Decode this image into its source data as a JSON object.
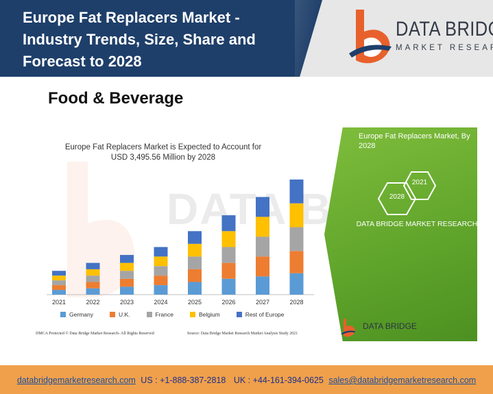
{
  "header": {
    "title": "Europe Fat Replacers Market - Industry Trends, Size, Share and Forecast to 2028",
    "logo_name": "DATA BRIDGE",
    "logo_sub": "MARKET RESEARCH"
  },
  "category": "Food & Beverage",
  "infographic": {
    "chart_title_line1": "Europe Fat Replacers Market is Expected to Account for",
    "chart_title_line2": "USD 3,495.56 Million by 2028",
    "watermark": "DATA BRIDGE",
    "footnote_left": "DMCA Protected © Data Bridge Market Research- All Rights Reserved",
    "footnote_right": "Source: Data Bridge Market Research Market Analysis Study 2021",
    "green_title": "Europe Fat Replacers Market, By 2028",
    "hex_2021": "2021",
    "hex_2028": "2028",
    "green_company": "DATA BRIDGE MARKET RESEARCH",
    "green_logo": "DATA BRIDGE"
  },
  "chart_data": {
    "type": "bar",
    "stacked": true,
    "categories": [
      "2021",
      "2022",
      "2023",
      "2024",
      "2025",
      "2026",
      "2027",
      "2028"
    ],
    "series": [
      {
        "name": "Germany",
        "color": "#5b9bd5",
        "values": [
          6,
          8,
          10,
          12,
          16,
          20,
          23,
          27
        ]
      },
      {
        "name": "U.K.",
        "color": "#ed7d31",
        "values": [
          6,
          8,
          10,
          12,
          16,
          20,
          25,
          28
        ]
      },
      {
        "name": "France",
        "color": "#a5a5a5",
        "values": [
          6,
          8,
          10,
          12,
          16,
          20,
          25,
          30
        ]
      },
      {
        "name": "Belgium",
        "color": "#ffc000",
        "values": [
          6,
          8,
          10,
          12,
          16,
          20,
          25,
          30
        ]
      },
      {
        "name": "Rest of Europe",
        "color": "#4472c4",
        "values": [
          6,
          8,
          10,
          12,
          16,
          20,
          25,
          30
        ]
      }
    ],
    "grid": false,
    "legend": "bottom"
  },
  "footer": {
    "website": "databridgemarketresearch.com",
    "us_phone": "US : +1-888-387-2818",
    "uk_phone": "UK : +44-161-394-0625",
    "email": "sales@databridgemarketresearch.com"
  },
  "colors": {
    "header_band": "#1e3f6a",
    "accent_orange": "#f0a04b",
    "green_panel": "#6aaf30"
  },
  "icons": [
    "data-bridge-logo-icon",
    "hexagon-icon"
  ]
}
